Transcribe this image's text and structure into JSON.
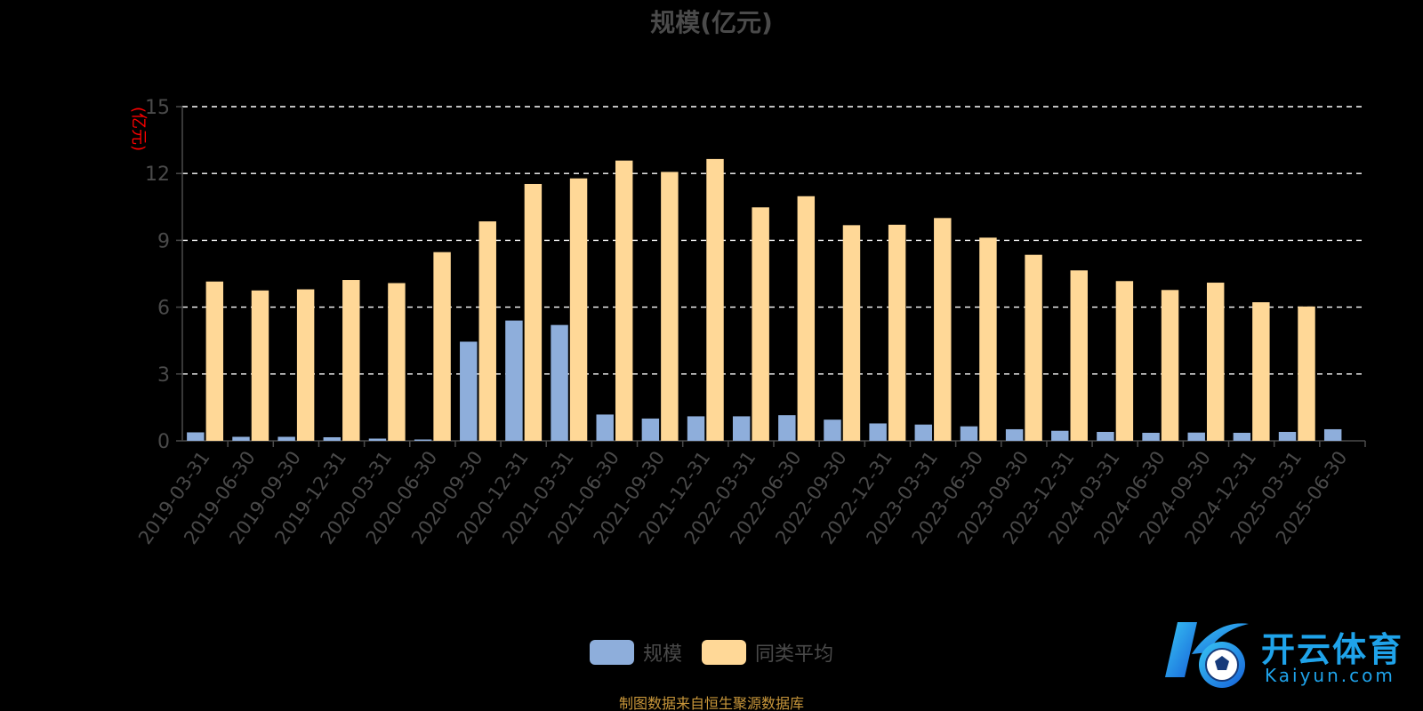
{
  "chart_data": {
    "type": "bar",
    "title": "规模(亿元)",
    "ylabel": "(亿元)",
    "ylim": [
      0,
      15
    ],
    "yticks": [
      0,
      3,
      6,
      9,
      12,
      15
    ],
    "grid": true,
    "legend_position": "bottom-center",
    "categories": [
      "2019-03-31",
      "2019-06-30",
      "2019-09-30",
      "2019-12-31",
      "2020-03-31",
      "2020-06-30",
      "2020-09-30",
      "2020-12-31",
      "2021-03-31",
      "2021-06-30",
      "2021-09-30",
      "2021-12-31",
      "2022-03-31",
      "2022-06-30",
      "2022-09-30",
      "2022-12-31",
      "2023-03-31",
      "2023-06-30",
      "2023-09-30",
      "2023-12-31",
      "2024-03-31",
      "2024-06-30",
      "2024-09-30",
      "2024-12-31",
      "2025-03-31",
      "2025-06-30"
    ],
    "series": [
      {
        "name": "规模",
        "color": "#8eaedb",
        "values": [
          0.38,
          0.18,
          0.18,
          0.16,
          0.1,
          0.06,
          4.45,
          5.4,
          5.2,
          1.18,
          1.0,
          1.1,
          1.1,
          1.15,
          0.95,
          0.78,
          0.73,
          0.65,
          0.52,
          0.45,
          0.4,
          0.36,
          0.37,
          0.36,
          0.4,
          0.52
        ]
      },
      {
        "name": "同类平均",
        "color": "#ffd897",
        "values": [
          7.15,
          6.75,
          6.8,
          7.22,
          7.08,
          8.47,
          9.85,
          11.53,
          11.78,
          12.58,
          12.07,
          12.65,
          10.48,
          10.98,
          9.68,
          9.7,
          10.0,
          9.12,
          8.35,
          7.65,
          7.17,
          6.77,
          7.1,
          6.22,
          6.03,
          null
        ]
      }
    ]
  },
  "legend": {
    "items": [
      {
        "label": "规模",
        "color": "#8eaedb"
      },
      {
        "label": "同类平均",
        "color": "#ffd897"
      }
    ]
  },
  "footer": {
    "note": "制图数据来自恒生聚源数据库"
  },
  "watermark": {
    "brand": "开云体育",
    "site": "Kaiyun.com",
    "icon": "kaiyun-logo-icon"
  },
  "colors": {
    "background": "#000000",
    "axis_text": "#4a4a4a",
    "grid": "#ffffff",
    "ylabel": "#ff0000",
    "footer": "#c8963a",
    "brand": "#1fa3ea"
  }
}
